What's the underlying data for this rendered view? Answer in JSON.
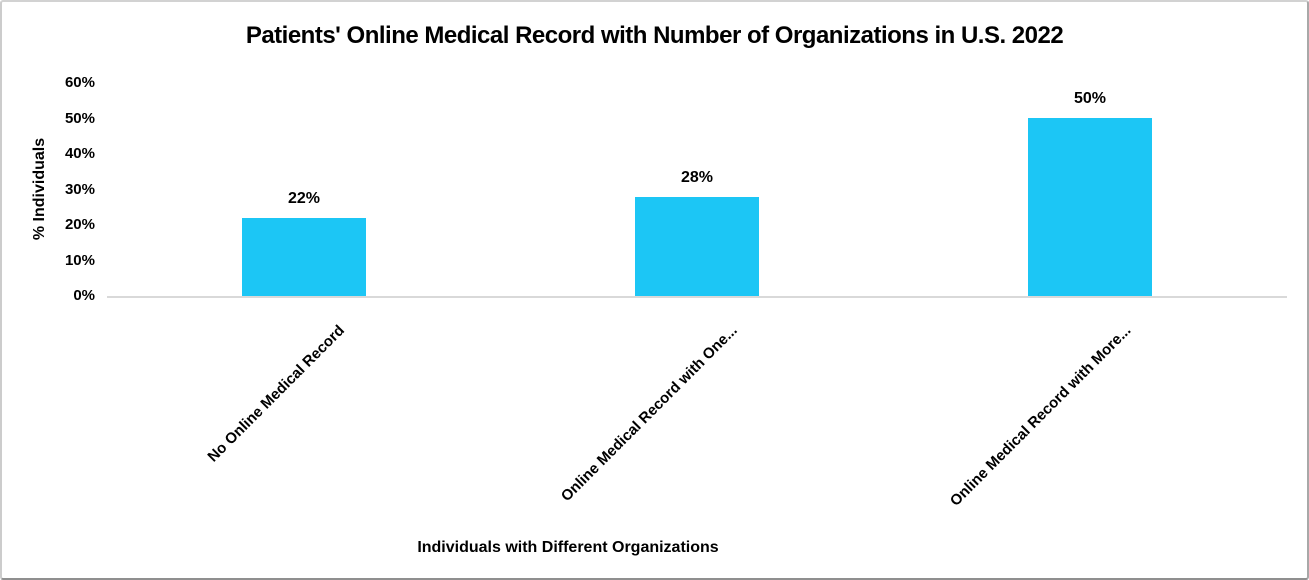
{
  "chart_data": {
    "type": "bar",
    "title": "Patients' Online Medical Record with Number of Organizations in U.S. 2022",
    "xlabel": "Individuals with Different Organizations",
    "ylabel": "% Individuals",
    "categories": [
      "No Online Medical Record",
      "Online Medical Record with One...",
      "Online Medical Record with More..."
    ],
    "values": [
      22,
      28,
      50
    ],
    "data_labels": [
      "22%",
      "28%",
      "50%"
    ],
    "ylim": [
      0,
      60
    ],
    "ytick_step": 10,
    "ytick_labels": [
      "0%",
      "10%",
      "20%",
      "30%",
      "40%",
      "50%",
      "60%"
    ],
    "grid": false,
    "legend": false,
    "bar_color": "#1cc6f5",
    "axis_line_color": "#d9d9d9",
    "text_color": "#000000"
  }
}
